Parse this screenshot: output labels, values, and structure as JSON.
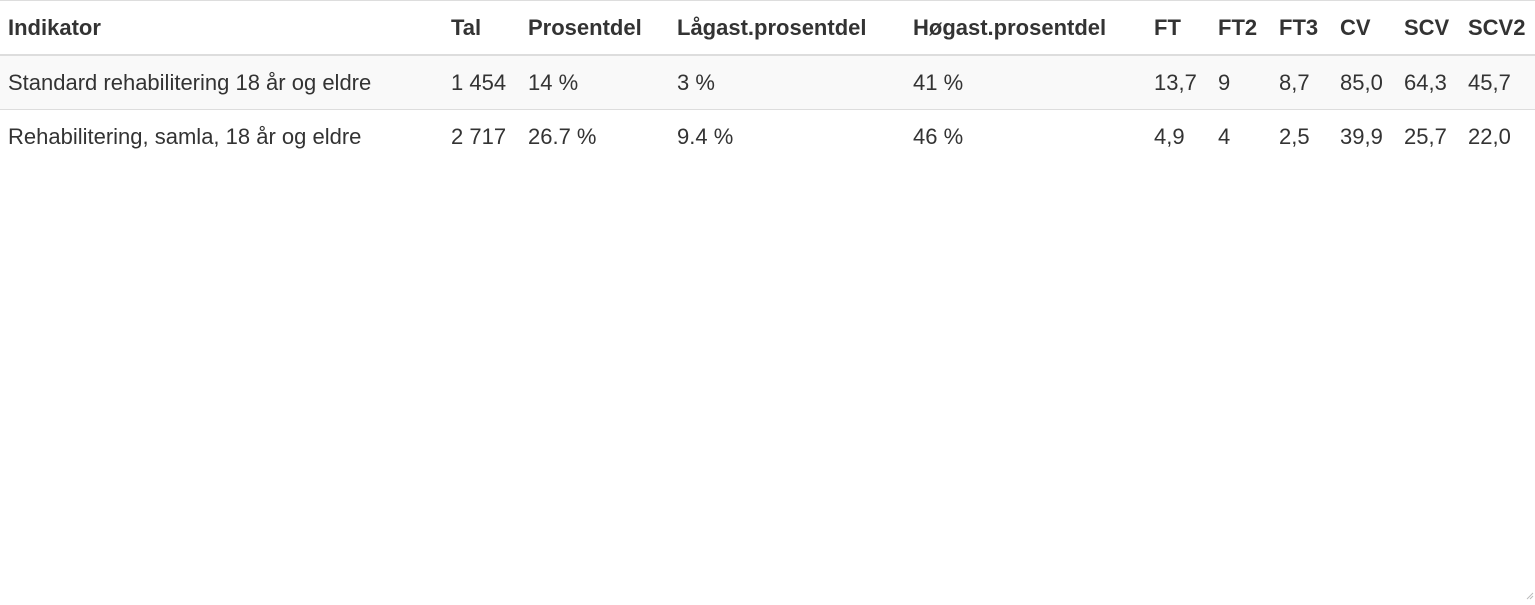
{
  "table": {
    "headers": [
      "Indikator",
      "Tal",
      "Prosentdel",
      "Lågast.prosentdel",
      "Høgast.prosentdel",
      "FT",
      "FT2",
      "FT3",
      "CV",
      "SCV",
      "SCV2"
    ],
    "rows": [
      [
        "Standard rehabilitering 18 år og eldre",
        "1 454",
        "14 %",
        "3 %",
        "41 %",
        "13,7",
        "9",
        "8,7",
        "85,0",
        "64,3",
        "45,7"
      ],
      [
        "Rehabilitering, samla, 18 år og eldre",
        "2 717",
        "26.7 %",
        "9.4 %",
        "46 %",
        "4,9",
        "4",
        "2,5",
        "39,9",
        "25,7",
        "22,0"
      ]
    ]
  },
  "colors": {
    "border": "#dddddd",
    "stripe": "#f9f9f9",
    "text": "#333333"
  }
}
